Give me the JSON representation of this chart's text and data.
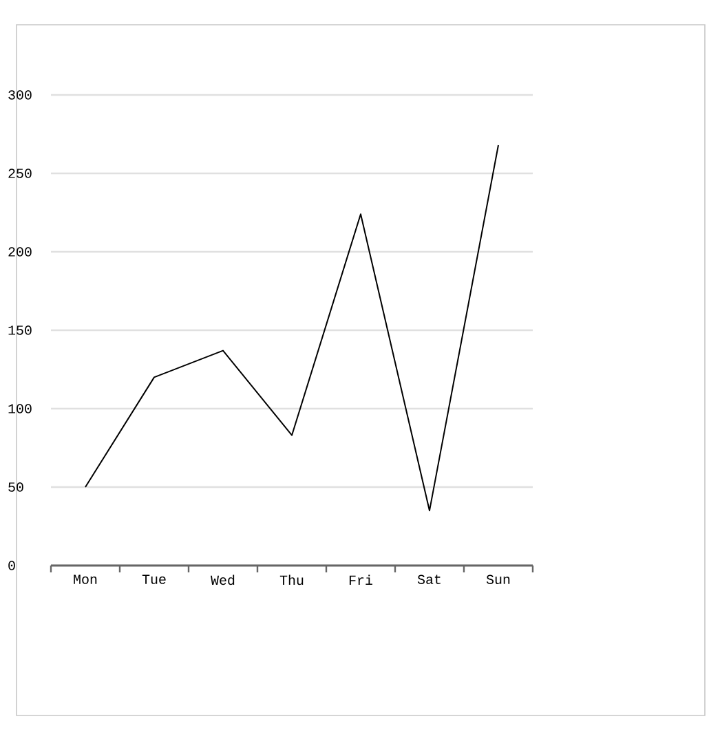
{
  "chart_data": {
    "type": "line",
    "categories": [
      "Mon",
      "Tue",
      "Wed",
      "Thu",
      "Fri",
      "Sat",
      "Sun"
    ],
    "values": [
      50,
      120,
      137,
      83,
      224,
      35,
      268
    ],
    "color": "#000000",
    "ylim": [
      0,
      300
    ],
    "yticks": [
      0,
      50,
      100,
      150,
      200,
      250,
      300
    ],
    "grid": "y"
  }
}
